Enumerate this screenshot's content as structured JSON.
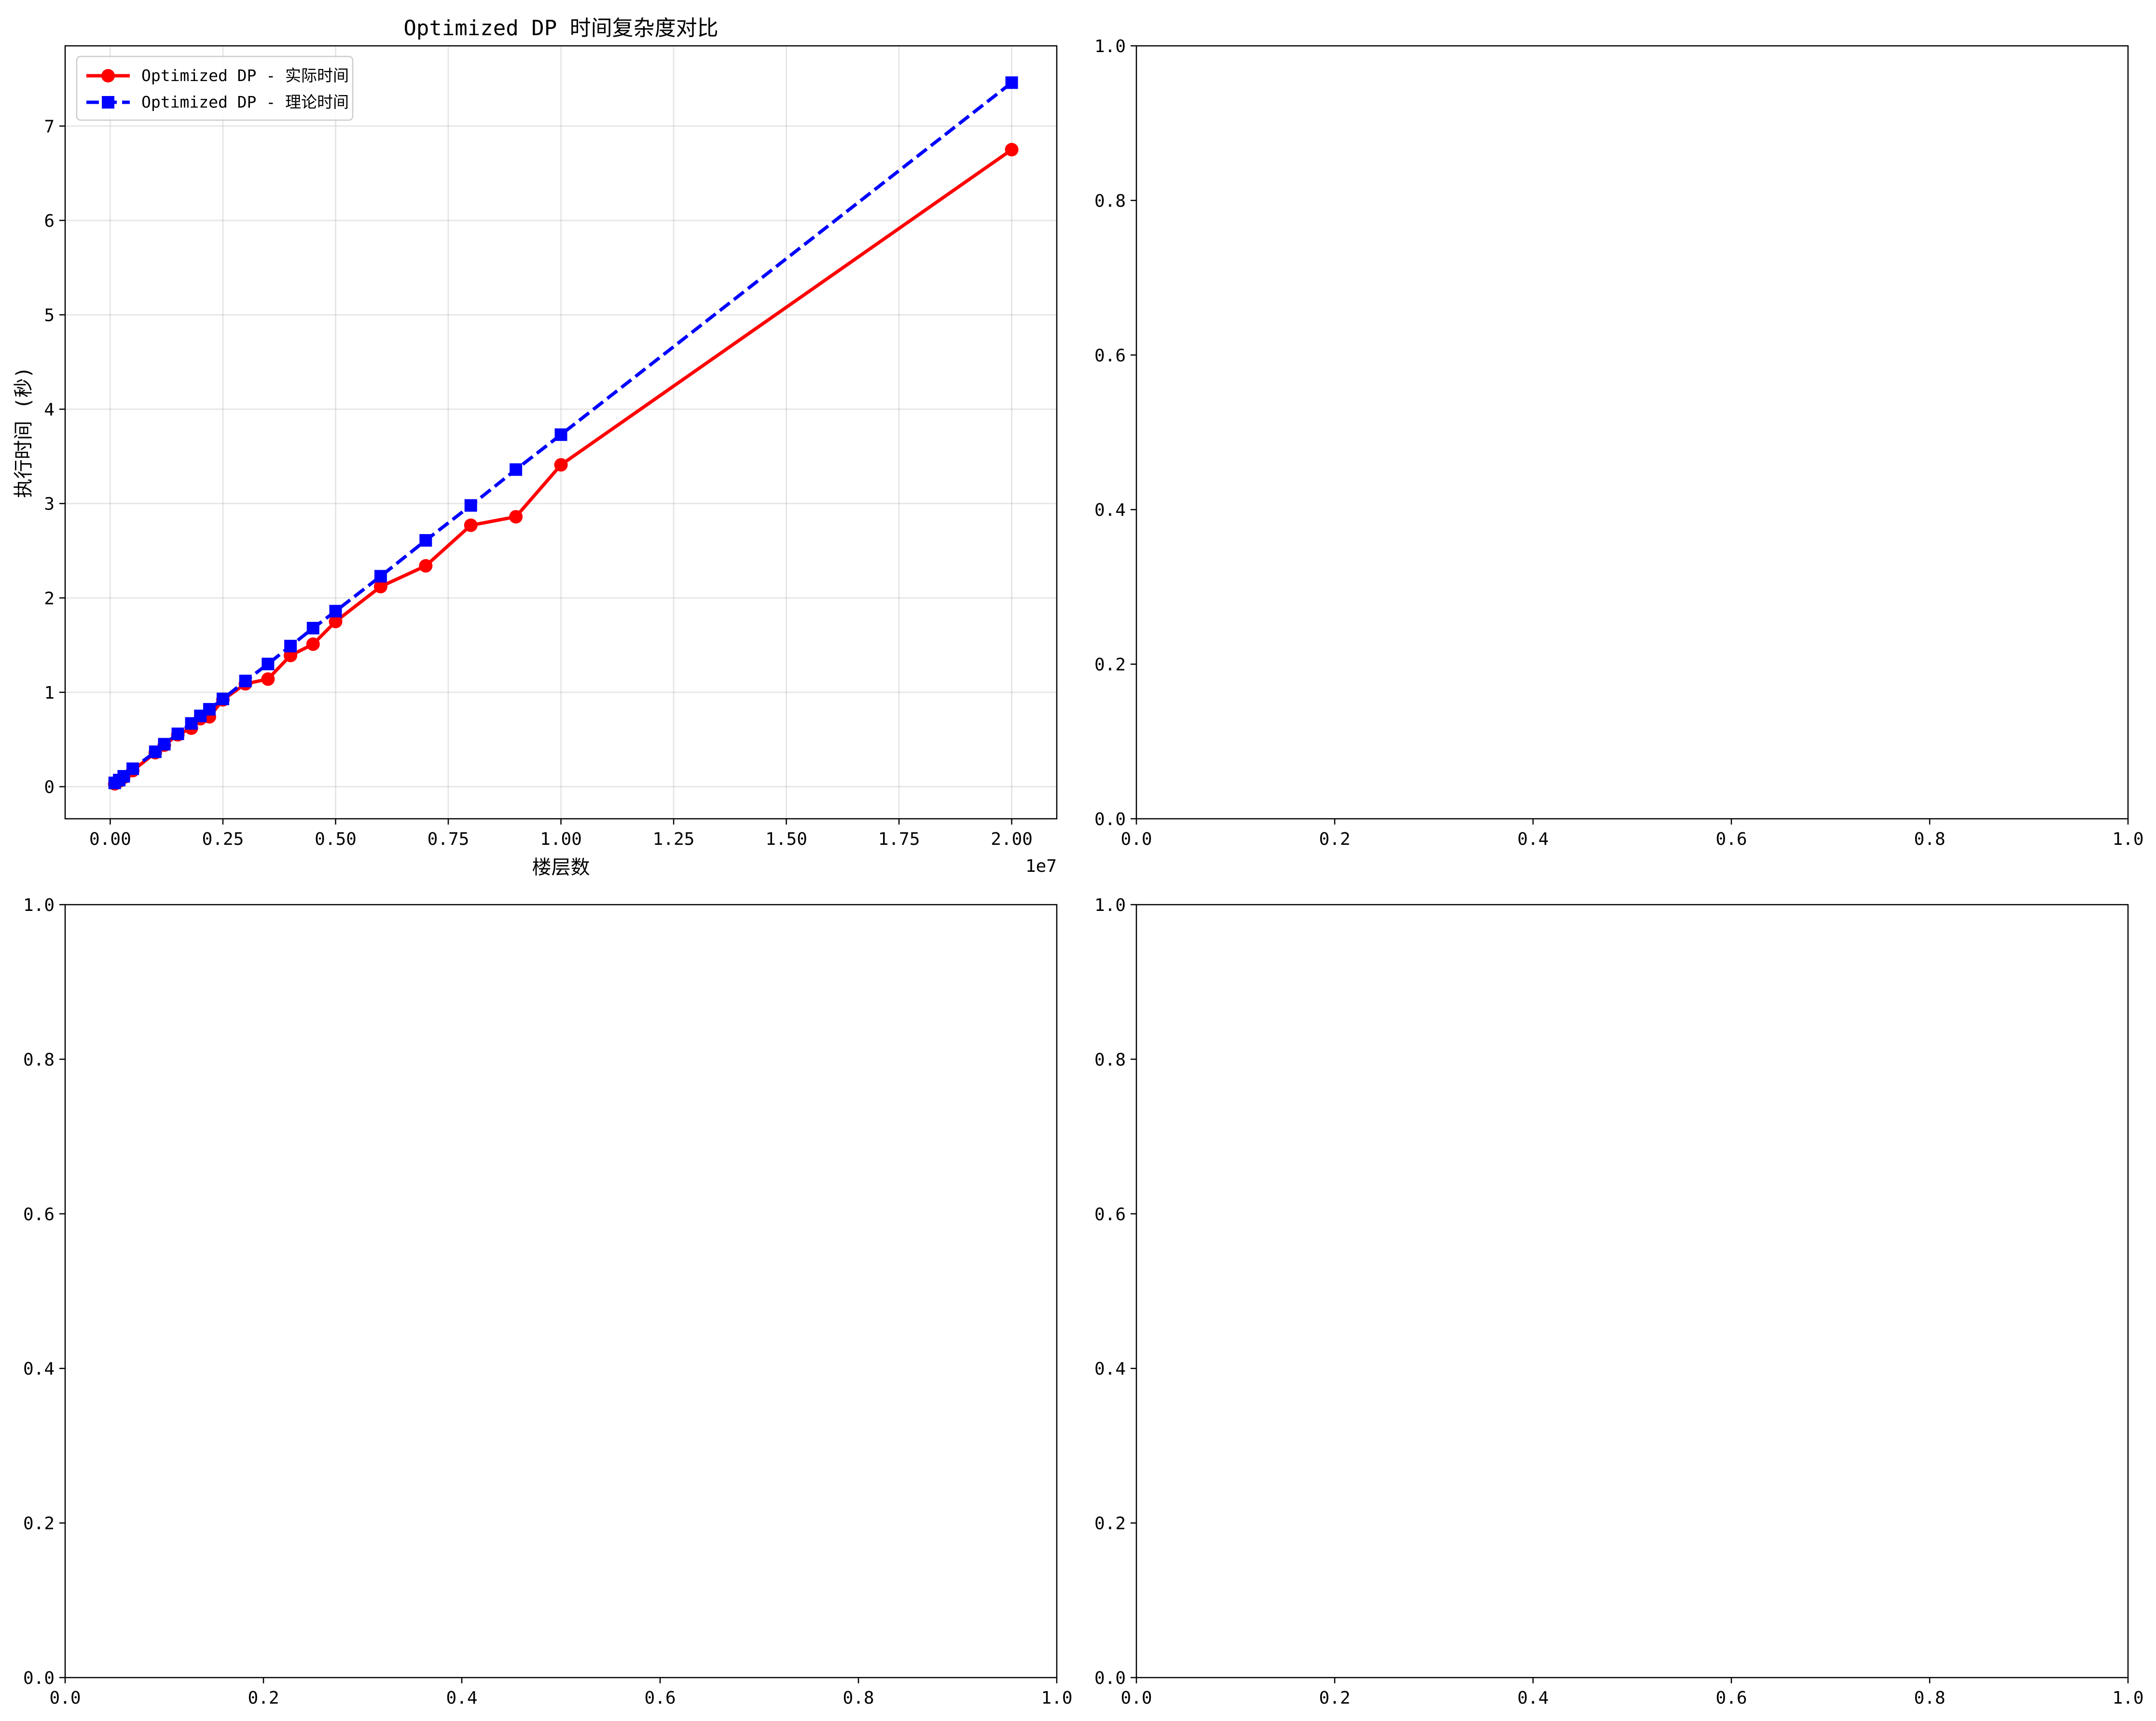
{
  "chart_data": [
    {
      "type": "line",
      "title": "Optimized DP 时间复杂度对比",
      "xlabel": "楼层数",
      "ylabel": "执行时间 (秒)",
      "x_offset_label": "1e7",
      "xlim": [
        -0.1,
        2.1
      ],
      "ylim": [
        -0.34,
        7.85
      ],
      "x_ticks": [
        0,
        0.25,
        0.5,
        0.75,
        1.0,
        1.25,
        1.5,
        1.75,
        2.0
      ],
      "x_tick_labels": [
        "0.00",
        "0.25",
        "0.50",
        "0.75",
        "1.00",
        "1.25",
        "1.50",
        "1.75",
        "2.00"
      ],
      "y_ticks": [
        0,
        1,
        2,
        3,
        4,
        5,
        6,
        7
      ],
      "y_tick_labels": [
        "0",
        "1",
        "2",
        "3",
        "4",
        "5",
        "6",
        "7"
      ],
      "grid": true,
      "legend_position": "top-left",
      "series": [
        {
          "name": "Optimized DP - 实际时间",
          "color": "#ff0000",
          "line_style": "solid",
          "marker": "circle",
          "x": [
            0.01,
            0.02,
            0.03,
            0.05,
            0.1,
            0.12,
            0.15,
            0.18,
            0.2,
            0.22,
            0.25,
            0.3,
            0.35,
            0.4,
            0.45,
            0.5,
            0.6,
            0.7,
            0.8,
            0.9,
            1.0,
            2.0
          ],
          "y": [
            0.03,
            0.06,
            0.1,
            0.17,
            0.36,
            0.44,
            0.55,
            0.62,
            0.72,
            0.74,
            0.92,
            1.09,
            1.14,
            1.39,
            1.51,
            1.75,
            2.12,
            2.34,
            2.77,
            2.86,
            3.41,
            6.75
          ]
        },
        {
          "name": "Optimized DP - 理论时间",
          "color": "#0000ff",
          "line_style": "dashed",
          "marker": "square",
          "x": [
            0.01,
            0.02,
            0.03,
            0.05,
            0.1,
            0.12,
            0.15,
            0.18,
            0.2,
            0.22,
            0.25,
            0.3,
            0.35,
            0.4,
            0.45,
            0.5,
            0.6,
            0.7,
            0.8,
            0.9,
            1.0,
            2.0
          ],
          "y": [
            0.04,
            0.07,
            0.11,
            0.19,
            0.37,
            0.45,
            0.56,
            0.67,
            0.75,
            0.82,
            0.93,
            1.12,
            1.3,
            1.49,
            1.68,
            1.86,
            2.23,
            2.61,
            2.98,
            3.36,
            3.73,
            7.46
          ]
        }
      ]
    },
    {
      "type": "line",
      "title": "",
      "xlim": [
        0,
        1
      ],
      "ylim": [
        0,
        1
      ],
      "x_ticks": [
        0,
        0.2,
        0.4,
        0.6,
        0.8,
        1.0
      ],
      "x_tick_labels": [
        "0.0",
        "0.2",
        "0.4",
        "0.6",
        "0.8",
        "1.0"
      ],
      "y_ticks": [
        0,
        0.2,
        0.4,
        0.6,
        0.8,
        1.0
      ],
      "y_tick_labels": [
        "0.0",
        "0.2",
        "0.4",
        "0.6",
        "0.8",
        "1.0"
      ],
      "grid": false,
      "series": []
    },
    {
      "type": "line",
      "title": "",
      "xlim": [
        0,
        1
      ],
      "ylim": [
        0,
        1
      ],
      "x_ticks": [
        0,
        0.2,
        0.4,
        0.6,
        0.8,
        1.0
      ],
      "x_tick_labels": [
        "0.0",
        "0.2",
        "0.4",
        "0.6",
        "0.8",
        "1.0"
      ],
      "y_ticks": [
        0,
        0.2,
        0.4,
        0.6,
        0.8,
        1.0
      ],
      "y_tick_labels": [
        "0.0",
        "0.2",
        "0.4",
        "0.6",
        "0.8",
        "1.0"
      ],
      "grid": false,
      "series": []
    },
    {
      "type": "line",
      "title": "",
      "xlim": [
        0,
        1
      ],
      "ylim": [
        0,
        1
      ],
      "x_ticks": [
        0,
        0.2,
        0.4,
        0.6,
        0.8,
        1.0
      ],
      "x_tick_labels": [
        "0.0",
        "0.2",
        "0.4",
        "0.6",
        "0.8",
        "1.0"
      ],
      "y_ticks": [
        0,
        0.2,
        0.4,
        0.6,
        0.8,
        1.0
      ],
      "y_tick_labels": [
        "0.0",
        "0.2",
        "0.4",
        "0.6",
        "0.8",
        "1.0"
      ],
      "grid": false,
      "series": []
    }
  ]
}
